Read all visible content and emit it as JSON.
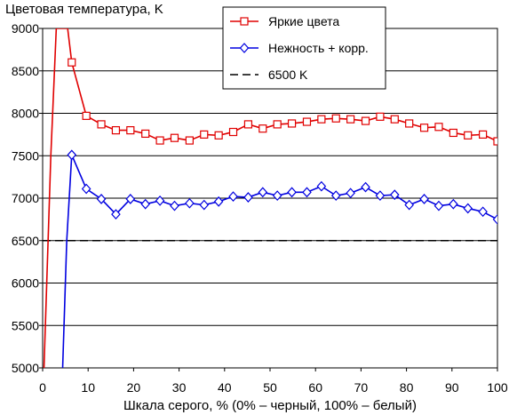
{
  "chart_data": {
    "type": "line",
    "title": "",
    "ylabel": "Цветовая температура, K",
    "xlabel": "Шкала серого, % (0% – черный, 100% – белый)",
    "xlim": [
      0,
      100
    ],
    "ylim": [
      5000,
      9000
    ],
    "xticks": [
      "0",
      "10",
      "20",
      "30",
      "40",
      "50",
      "60",
      "70",
      "80",
      "90",
      "100"
    ],
    "yticks": [
      "5000",
      "5500",
      "6000",
      "6500",
      "7000",
      "7500",
      "8000",
      "8500",
      "9000"
    ],
    "grid": "horizontal",
    "legend_position": "top-right",
    "series": [
      {
        "name": "Яркие цвета",
        "color": "#e00000",
        "marker": "square",
        "line_points": [
          [
            0.3,
            5000
          ],
          [
            1.8,
            7500
          ],
          [
            3.0,
            9000
          ],
          [
            5.5,
            9000
          ],
          [
            6.4,
            8600
          ],
          [
            9.6,
            7970
          ]
        ],
        "x": [
          6.4,
          9.6,
          12.9,
          16.1,
          19.3,
          22.6,
          25.8,
          29.0,
          32.3,
          35.5,
          38.7,
          41.9,
          45.2,
          48.4,
          51.6,
          54.8,
          58.1,
          61.3,
          64.5,
          67.7,
          71.0,
          74.2,
          77.4,
          80.6,
          83.9,
          87.1,
          90.3,
          93.5,
          96.8,
          100.0
        ],
        "y": [
          8600,
          7970,
          7870,
          7800,
          7800,
          7760,
          7680,
          7710,
          7680,
          7750,
          7740,
          7780,
          7870,
          7820,
          7870,
          7880,
          7900,
          7930,
          7940,
          7930,
          7910,
          7960,
          7930,
          7880,
          7830,
          7840,
          7770,
          7740,
          7750,
          7670
        ]
      },
      {
        "name": "Нежность + корр.",
        "color": "#0000e0",
        "marker": "diamond",
        "line_points": [
          [
            4.4,
            5000
          ],
          [
            5.3,
            6500
          ],
          [
            6.4,
            7510
          ]
        ],
        "x": [
          6.4,
          9.6,
          12.9,
          16.1,
          19.3,
          22.6,
          25.8,
          29.0,
          32.3,
          35.5,
          38.7,
          41.9,
          45.2,
          48.4,
          51.6,
          54.8,
          58.1,
          61.3,
          64.5,
          67.7,
          71.0,
          74.2,
          77.4,
          80.6,
          83.9,
          87.1,
          90.3,
          93.5,
          96.8,
          100.0
        ],
        "y": [
          7510,
          7110,
          6990,
          6810,
          6990,
          6930,
          6970,
          6910,
          6940,
          6920,
          6960,
          7020,
          7010,
          7070,
          7030,
          7070,
          7070,
          7140,
          7030,
          7060,
          7130,
          7030,
          7040,
          6920,
          6990,
          6910,
          6930,
          6880,
          6840,
          6750
        ]
      },
      {
        "name": "6500 K",
        "color": "#000000",
        "marker": "none",
        "dashed": true,
        "x": [
          0,
          100
        ],
        "y": [
          6500,
          6500
        ]
      }
    ]
  }
}
